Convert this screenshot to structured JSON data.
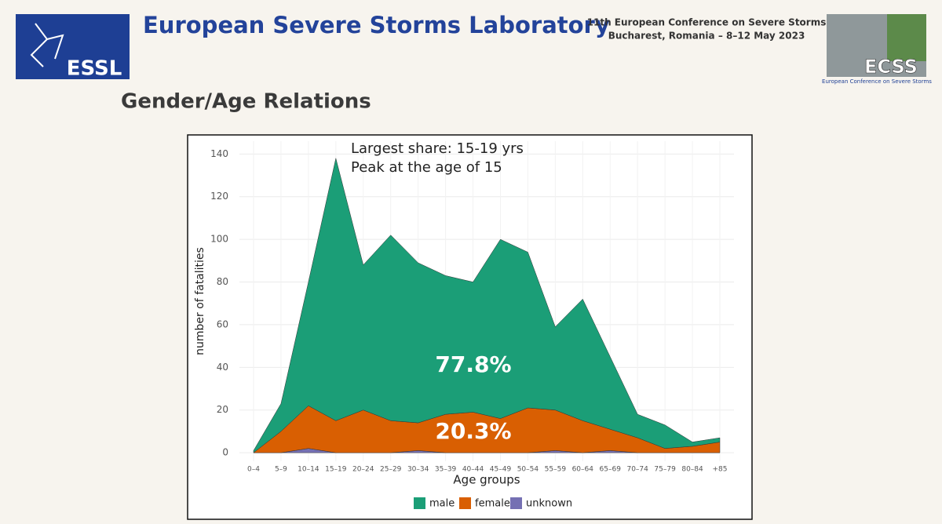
{
  "header": {
    "lab": "European Severe Storms Laboratory",
    "logo_left": "ESSL",
    "conference": "11th European Conference on Severe Storms",
    "venue": "Bucharest, Romania – 8–12 May 2023",
    "logo_right": "ECSS",
    "logo_right_caption": "European Conference on Severe Storms"
  },
  "slide_title": "Gender/Age Relations",
  "chart_data": {
    "type": "stacked_area",
    "xlabel": "Age groups",
    "ylabel": "number of fatalities",
    "categories": [
      "0–4",
      "5–9",
      "10–14",
      "15–19",
      "20–24",
      "25–29",
      "30–34",
      "35–39",
      "40–44",
      "45–49",
      "50–54",
      "55–59",
      "60–64",
      "65–69",
      "70–74",
      "75–79",
      "80–84",
      "+85"
    ],
    "series": [
      {
        "name": "male",
        "color": "#1b9e77",
        "values": [
          1,
          13,
          58,
          123,
          68,
          87,
          75,
          65,
          61,
          84,
          73,
          39,
          57,
          34,
          11,
          11,
          2,
          2
        ]
      },
      {
        "name": "female",
        "color": "#d95f02",
        "values": [
          0,
          10,
          20,
          15,
          20,
          15,
          13,
          18,
          19,
          16,
          21,
          19,
          15,
          10,
          7,
          2,
          3,
          5
        ]
      },
      {
        "name": "unknown",
        "color": "#7570b3",
        "values": [
          0,
          0,
          2,
          0,
          0,
          0,
          1,
          0,
          0,
          0,
          0,
          1,
          0,
          1,
          0,
          0,
          0,
          0
        ]
      }
    ],
    "ylim": [
      -4,
      146
    ],
    "yticks": [
      0,
      20,
      40,
      60,
      80,
      100,
      120,
      140
    ],
    "grid": true,
    "legend": "bottom",
    "annotations": [
      "Largest share: 15-19 yrs",
      "Peak at the age of 15",
      "77.8%",
      "20.3%"
    ]
  }
}
